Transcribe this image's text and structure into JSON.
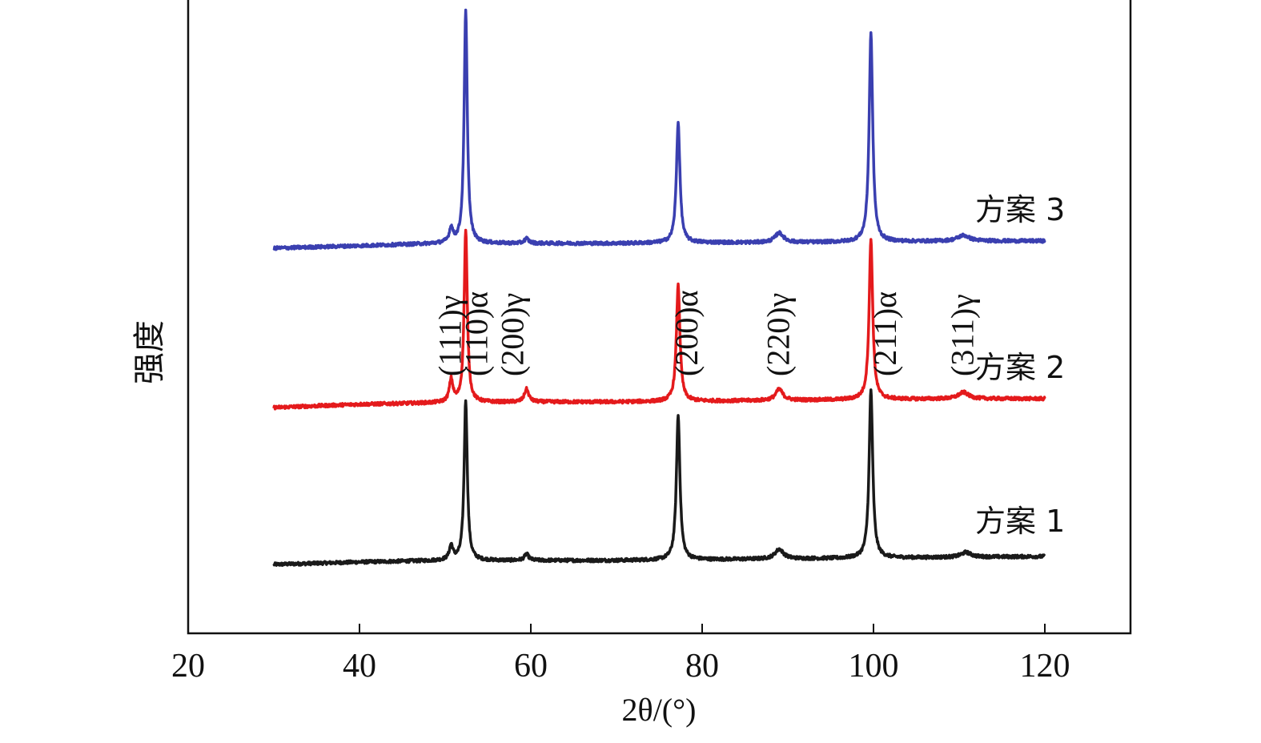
{
  "chart_data": {
    "type": "line",
    "xlabel": "2θ/(°)",
    "ylabel": "强度",
    "xlim": [
      20,
      130
    ],
    "xticks": [
      20,
      40,
      60,
      80,
      100,
      120
    ],
    "y_ticks_shown": false,
    "grid": false,
    "series_label_placement": "right end of each curve",
    "series": [
      {
        "name": "方案 1",
        "color": "#1a1a1a",
        "x_range": [
          30,
          120
        ],
        "baseline": [
          [
            30,
            0
          ],
          [
            40,
            3
          ],
          [
            50,
            5
          ],
          [
            60,
            5
          ],
          [
            70,
            5
          ],
          [
            80,
            6
          ],
          [
            90,
            7
          ],
          [
            100,
            8
          ],
          [
            110,
            9
          ],
          [
            120,
            10
          ]
        ],
        "peaks": [
          {
            "x": 50.7,
            "height": 18,
            "hwhm": 0.25
          },
          {
            "x": 52.4,
            "height": 200,
            "hwhm": 0.22
          },
          {
            "x": 59.5,
            "height": 8,
            "hwhm": 0.3
          },
          {
            "x": 77.2,
            "height": 180,
            "hwhm": 0.25
          },
          {
            "x": 89.0,
            "height": 12,
            "hwhm": 0.6
          },
          {
            "x": 99.7,
            "height": 210,
            "hwhm": 0.25
          },
          {
            "x": 110.8,
            "height": 6,
            "hwhm": 0.7
          }
        ]
      },
      {
        "name": "方案 2",
        "color": "#e41a1c",
        "x_range": [
          30,
          120
        ],
        "baseline": [
          [
            30,
            0
          ],
          [
            40,
            4
          ],
          [
            50,
            6
          ],
          [
            60,
            7
          ],
          [
            70,
            7
          ],
          [
            80,
            8
          ],
          [
            90,
            9
          ],
          [
            100,
            10
          ],
          [
            110,
            11
          ],
          [
            120,
            11
          ]
        ],
        "peaks": [
          {
            "x": 50.7,
            "height": 28,
            "hwhm": 0.25
          },
          {
            "x": 52.4,
            "height": 215,
            "hwhm": 0.22
          },
          {
            "x": 59.5,
            "height": 16,
            "hwhm": 0.3
          },
          {
            "x": 77.2,
            "height": 145,
            "hwhm": 0.25
          },
          {
            "x": 89.0,
            "height": 14,
            "hwhm": 0.5
          },
          {
            "x": 99.7,
            "height": 200,
            "hwhm": 0.25
          },
          {
            "x": 110.5,
            "height": 8,
            "hwhm": 0.7
          }
        ]
      },
      {
        "name": "方案 3",
        "color": "#3a3fb0",
        "x_range": [
          30,
          120
        ],
        "baseline": [
          [
            30,
            0
          ],
          [
            40,
            3
          ],
          [
            50,
            6
          ],
          [
            60,
            6
          ],
          [
            70,
            6
          ],
          [
            80,
            7
          ],
          [
            90,
            7
          ],
          [
            100,
            8
          ],
          [
            110,
            9
          ],
          [
            120,
            9
          ]
        ],
        "peaks": [
          {
            "x": 50.7,
            "height": 18,
            "hwhm": 0.25
          },
          {
            "x": 52.4,
            "height": 290,
            "hwhm": 0.22
          },
          {
            "x": 59.5,
            "height": 6,
            "hwhm": 0.3
          },
          {
            "x": 77.2,
            "height": 150,
            "hwhm": 0.25
          },
          {
            "x": 89.0,
            "height": 12,
            "hwhm": 0.6
          },
          {
            "x": 99.7,
            "height": 260,
            "hwhm": 0.25
          },
          {
            "x": 110.5,
            "height": 7,
            "hwhm": 0.8
          }
        ]
      }
    ],
    "annotations": [
      {
        "text": "(111)γ",
        "x": 50.7
      },
      {
        "text": "(110)α",
        "x": 53.8
      },
      {
        "text": "(200)γ",
        "x": 58.0
      },
      {
        "text": "(200)α",
        "x": 78.3
      },
      {
        "text": "(220)γ",
        "x": 89.0
      },
      {
        "text": "(211)α",
        "x": 101.5
      },
      {
        "text": "(311)γ",
        "x": 110.5
      }
    ]
  }
}
